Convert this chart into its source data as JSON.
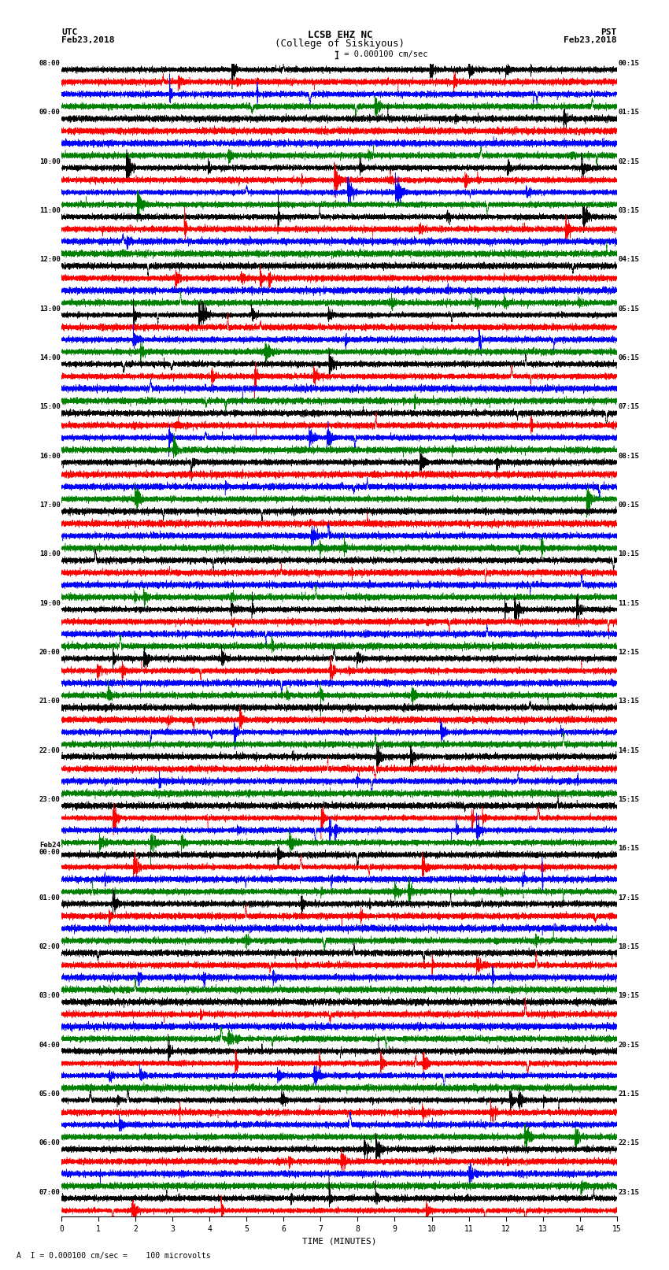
{
  "title_line1": "LCSB EHZ NC",
  "title_line2": "(College of Siskiyous)",
  "scale_text": "I = 0.000100 cm/sec",
  "bottom_text": "A  I = 0.000100 cm/sec =    100 microvolts",
  "utc_label": "UTC\nFeb23,2018",
  "pst_label": "PST\nFeb23,2018",
  "left_times": [
    "08:00",
    "",
    "",
    "",
    "09:00",
    "",
    "",
    "",
    "10:00",
    "",
    "",
    "",
    "11:00",
    "",
    "",
    "",
    "12:00",
    "",
    "",
    "",
    "13:00",
    "",
    "",
    "",
    "14:00",
    "",
    "",
    "",
    "15:00",
    "",
    "",
    "",
    "16:00",
    "",
    "",
    "",
    "17:00",
    "",
    "",
    "",
    "18:00",
    "",
    "",
    "",
    "19:00",
    "",
    "",
    "",
    "20:00",
    "",
    "",
    "",
    "21:00",
    "",
    "",
    "",
    "22:00",
    "",
    "",
    "",
    "23:00",
    "",
    "",
    "",
    "Feb24\n00:00",
    "",
    "",
    "",
    "01:00",
    "",
    "",
    "",
    "02:00",
    "",
    "",
    "",
    "03:00",
    "",
    "",
    "",
    "04:00",
    "",
    "",
    "",
    "05:00",
    "",
    "",
    "",
    "06:00",
    "",
    "",
    "",
    "07:00",
    ""
  ],
  "right_times": [
    "00:15",
    "",
    "",
    "",
    "01:15",
    "",
    "",
    "",
    "02:15",
    "",
    "",
    "",
    "03:15",
    "",
    "",
    "",
    "04:15",
    "",
    "",
    "",
    "05:15",
    "",
    "",
    "",
    "06:15",
    "",
    "",
    "",
    "07:15",
    "",
    "",
    "",
    "08:15",
    "",
    "",
    "",
    "09:15",
    "",
    "",
    "",
    "10:15",
    "",
    "",
    "",
    "11:15",
    "",
    "",
    "",
    "12:15",
    "",
    "",
    "",
    "13:15",
    "",
    "",
    "",
    "14:15",
    "",
    "",
    "",
    "15:15",
    "",
    "",
    "",
    "16:15",
    "",
    "",
    "",
    "17:15",
    "",
    "",
    "",
    "18:15",
    "",
    "",
    "",
    "19:15",
    "",
    "",
    "",
    "20:15",
    "",
    "",
    "",
    "21:15",
    "",
    "",
    "",
    "22:15",
    "",
    "",
    "",
    "23:15",
    ""
  ],
  "trace_colors": [
    "black",
    "red",
    "blue",
    "green"
  ],
  "num_traces": 94,
  "time_minutes": 15,
  "xlabel": "TIME (MINUTES)",
  "background_color": "white",
  "fig_width": 8.5,
  "fig_height": 16.13,
  "dpi": 100
}
